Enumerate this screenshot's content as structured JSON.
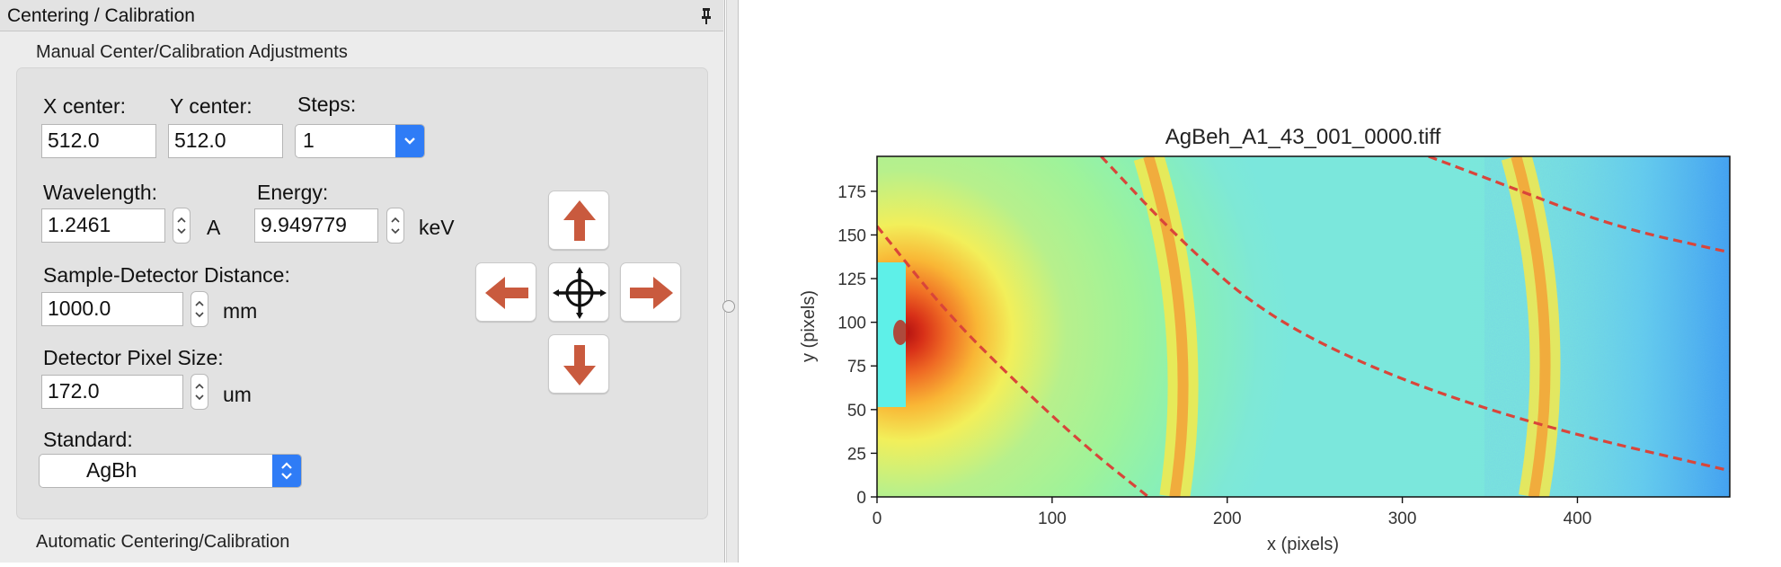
{
  "panel": {
    "title": "Centering / Calibration",
    "pin_icon": "pin-icon",
    "manual_section": {
      "title": "Manual Center/Calibration Adjustments",
      "x_center": {
        "label": "X center:",
        "value": "512.0"
      },
      "y_center": {
        "label": "Y center:",
        "value": "512.0"
      },
      "steps": {
        "label": "Steps:",
        "value": "1"
      },
      "wavelength": {
        "label": "Wavelength:",
        "value": "1.2461",
        "unit": "A"
      },
      "energy": {
        "label": "Energy:",
        "value": "9.949779",
        "unit": "keV"
      },
      "distance": {
        "label": "Sample-Detector Distance:",
        "value": "1000.0",
        "unit": "mm"
      },
      "pixel_size": {
        "label": "Detector Pixel Size:",
        "value": "172.0",
        "unit": "um"
      },
      "standard": {
        "label": "Standard:",
        "value": "AgBh"
      },
      "nav_buttons": [
        "up-arrow-icon",
        "left-arrow-icon",
        "center-crosshair-icon",
        "right-arrow-icon",
        "down-arrow-icon"
      ]
    },
    "auto_section": {
      "title": "Automatic Centering/Calibration"
    }
  },
  "colors": {
    "arrow": "#c95a3e",
    "combo_accent": "#2f7cf6",
    "ring_fit": "#d9453a"
  },
  "chart_data": {
    "type": "heatmap",
    "title": "AgBeh_A1_43_001_0000.tiff",
    "xlabel": "x (pixels)",
    "ylabel": "y (pixels)",
    "xlim": [
      0,
      487
    ],
    "ylim": [
      0,
      195
    ],
    "x_ticks": [
      0,
      100,
      200,
      300,
      400
    ],
    "y_ticks": [
      0,
      25,
      50,
      75,
      100,
      125,
      150,
      175
    ],
    "colormap": "jet",
    "beam_center": [
      12,
      95
    ],
    "rings": [
      {
        "name": "intensity ring 1",
        "x_at_y0": 170,
        "x_at_y195": 155
      },
      {
        "name": "intensity ring 2",
        "x_at_y0": 375,
        "x_at_y195": 365
      }
    ],
    "fit_curves": [
      {
        "style": "dashed",
        "points": [
          [
            0,
            155
          ],
          [
            40,
            105
          ],
          [
            80,
            65
          ],
          [
            120,
            28
          ],
          [
            155,
            0
          ]
        ]
      },
      {
        "style": "dashed",
        "points": [
          [
            128,
            195
          ],
          [
            170,
            150
          ],
          [
            220,
            105
          ],
          [
            290,
            70
          ],
          [
            380,
            40
          ],
          [
            487,
            15
          ]
        ]
      },
      {
        "style": "dashed",
        "points": [
          [
            315,
            195
          ],
          [
            360,
            178
          ],
          [
            420,
            155
          ],
          [
            487,
            140
          ]
        ]
      }
    ],
    "grid": false
  }
}
